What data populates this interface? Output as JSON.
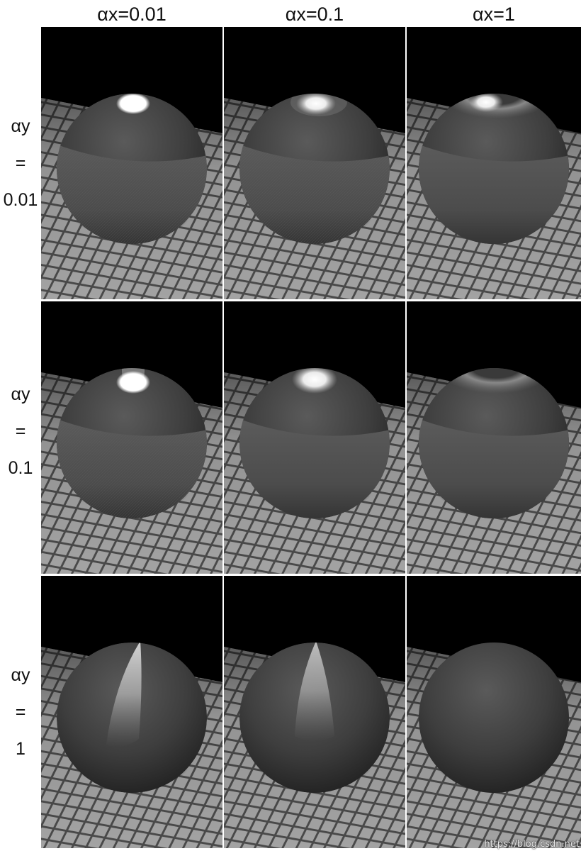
{
  "columns": [
    {
      "label": "αx=0.01"
    },
    {
      "label": "αx=0.1"
    },
    {
      "label": "αx=1"
    }
  ],
  "rows": [
    {
      "name": "αy",
      "eq": "=",
      "value": "0.01"
    },
    {
      "name": "αy",
      "eq": "=",
      "value": "0.1"
    },
    {
      "name": "αy",
      "eq": "=",
      "value": "1"
    }
  ],
  "watermark": "https://blog.csdn.net",
  "colors": {
    "background_sky": "#000000",
    "floor_tile": "#9a9a9a",
    "floor_grout": "#4a4a4a",
    "sphere_base": "#3c3c3c",
    "highlight": "#ffffff"
  }
}
